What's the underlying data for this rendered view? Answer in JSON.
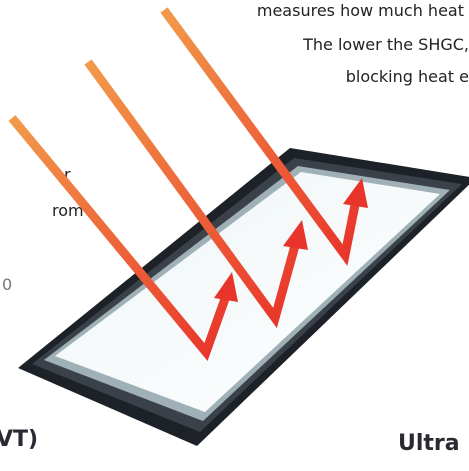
{
  "top_text": {
    "line1": "measures how much heat",
    "line2": "The lower the SHGC,",
    "line3": "blocking heat e"
  },
  "left_text": {
    "line1": "r",
    "line2": "rom",
    "line3": "0"
  },
  "bottom_left_heading": "VT)",
  "bottom_right_heading": "Ultra"
}
